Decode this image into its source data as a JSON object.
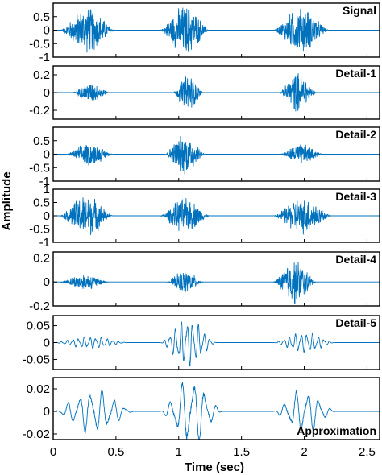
{
  "chart_data": {
    "type": "line",
    "xlabel": "Time (sec)",
    "ylabel": "Amplitude",
    "xlim": [
      0,
      2.6
    ],
    "xticks": [
      0,
      0.5,
      1,
      1.5,
      2,
      2.5
    ],
    "xtick_labels": [
      "0",
      "0.5",
      "1",
      "1.5",
      "2",
      "2.5"
    ],
    "line_color": "#0072BD",
    "grid": false,
    "panels": [
      {
        "name": "Signal",
        "ylim": [
          -1,
          1
        ],
        "yticks": [
          0.5,
          0,
          -0.5,
          -1
        ],
        "ytick_labels": [
          "0.5",
          "0",
          "-0.5",
          "-1"
        ],
        "label_position": "top-right",
        "bursts": [
          {
            "t_start": 0.05,
            "t_end": 0.5,
            "peak_amplitude": 0.9
          },
          {
            "t_start": 0.85,
            "t_end": 1.25,
            "peak_amplitude": 1.0
          },
          {
            "t_start": 1.75,
            "t_end": 2.2,
            "peak_amplitude": 0.9
          }
        ]
      },
      {
        "name": "Detail-1",
        "ylim": [
          -0.3,
          0.3
        ],
        "yticks": [
          0.2,
          0,
          -0.2
        ],
        "ytick_labels": [
          "0.2",
          "0",
          "-0.2"
        ],
        "label_position": "top-right",
        "bursts": [
          {
            "t_start": 0.15,
            "t_end": 0.45,
            "peak_amplitude": 0.12
          },
          {
            "t_start": 0.95,
            "t_end": 1.2,
            "peak_amplitude": 0.22
          },
          {
            "t_start": 1.8,
            "t_end": 2.1,
            "peak_amplitude": 0.25
          }
        ]
      },
      {
        "name": "Detail-2",
        "ylim": [
          -1,
          1
        ],
        "yticks": [
          0.5,
          0,
          -0.5,
          -1
        ],
        "ytick_labels": [
          "0.5",
          "0",
          "-0.5",
          "-1"
        ],
        "label_position": "top-right",
        "bursts": [
          {
            "t_start": 0.1,
            "t_end": 0.48,
            "peak_amplitude": 0.45
          },
          {
            "t_start": 0.88,
            "t_end": 1.22,
            "peak_amplitude": 0.8
          },
          {
            "t_start": 1.8,
            "t_end": 2.15,
            "peak_amplitude": 0.4
          }
        ]
      },
      {
        "name": "Detail-3",
        "ylim": [
          -1,
          1
        ],
        "yticks": [
          1,
          0.5,
          0,
          -0.5,
          -1
        ],
        "ytick_labels": [
          "1",
          "0.5",
          "0",
          "-0.5",
          "-1"
        ],
        "label_position": "top-right",
        "bursts": [
          {
            "t_start": 0.05,
            "t_end": 0.48,
            "peak_amplitude": 0.85
          },
          {
            "t_start": 0.85,
            "t_end": 1.25,
            "peak_amplitude": 0.7
          },
          {
            "t_start": 1.75,
            "t_end": 2.22,
            "peak_amplitude": 0.75
          }
        ]
      },
      {
        "name": "Detail-4",
        "ylim": [
          -0.2,
          0.25
        ],
        "yticks": [
          0.2,
          0,
          -0.2
        ],
        "ytick_labels": [
          "0.2",
          "0",
          "-0.2"
        ],
        "label_position": "top-right",
        "bursts": [
          {
            "t_start": 0.05,
            "t_end": 0.45,
            "peak_amplitude": 0.07
          },
          {
            "t_start": 0.9,
            "t_end": 1.2,
            "peak_amplitude": 0.1
          },
          {
            "t_start": 1.75,
            "t_end": 2.1,
            "peak_amplitude": 0.2
          }
        ]
      },
      {
        "name": "Detail-5",
        "ylim": [
          -0.08,
          0.08
        ],
        "yticks": [
          0.05,
          0,
          -0.05
        ],
        "ytick_labels": [
          "0.05",
          "0",
          "-0.05"
        ],
        "label_position": "top-right",
        "bursts": [
          {
            "t_start": 0.0,
            "t_end": 0.6,
            "peak_amplitude": 0.018
          },
          {
            "t_start": 0.85,
            "t_end": 1.3,
            "peak_amplitude": 0.07
          },
          {
            "t_start": 1.75,
            "t_end": 2.25,
            "peak_amplitude": 0.03
          }
        ]
      },
      {
        "name": "Approximation",
        "ylim": [
          -0.025,
          0.03
        ],
        "yticks": [
          0.02,
          0,
          -0.02
        ],
        "ytick_labels": [
          "0.02",
          "0",
          "-0.02"
        ],
        "label_position": "bottom-right",
        "bursts": [
          {
            "t_start": 0.0,
            "t_end": 0.65,
            "peak_amplitude": 0.02
          },
          {
            "t_start": 0.85,
            "t_end": 1.35,
            "peak_amplitude": 0.03
          },
          {
            "t_start": 1.75,
            "t_end": 2.25,
            "peak_amplitude": 0.02
          }
        ]
      }
    ]
  }
}
